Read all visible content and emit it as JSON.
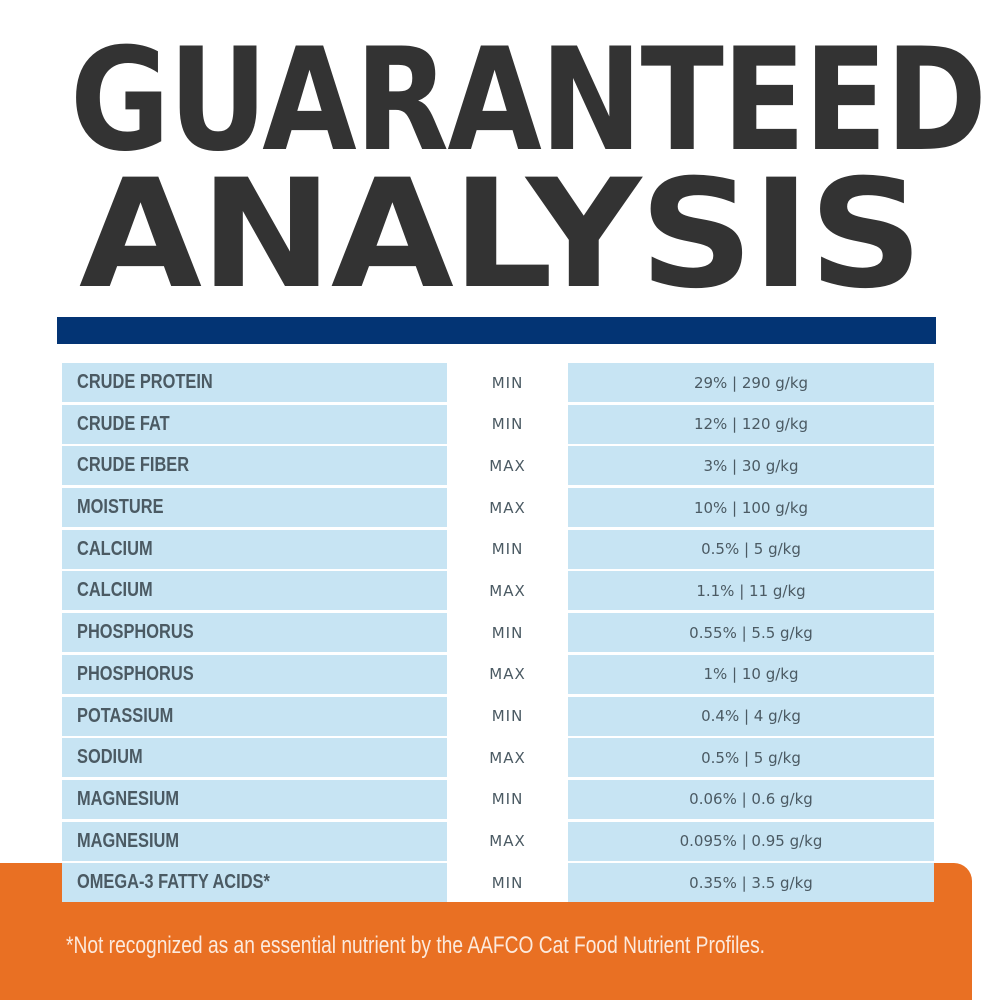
{
  "title": {
    "line1": "GUARANTEED",
    "line2": "ANALYSIS"
  },
  "colors": {
    "title": "#333333",
    "bar": "#033474",
    "row": "#C7E4F3",
    "footer_bg": "#E97023",
    "text": "#4B5A63"
  },
  "rows": [
    {
      "nutrient": "CRUDE PROTEIN",
      "type": "MIN",
      "value": "29% | 290 g/kg"
    },
    {
      "nutrient": "CRUDE FAT",
      "type": "MIN",
      "value": "12% | 120 g/kg"
    },
    {
      "nutrient": "CRUDE FIBER",
      "type": "MAX",
      "value": "3% | 30 g/kg"
    },
    {
      "nutrient": "MOISTURE",
      "type": "MAX",
      "value": "10% | 100 g/kg"
    },
    {
      "nutrient": "CALCIUM",
      "type": "MIN",
      "value": "0.5% | 5 g/kg"
    },
    {
      "nutrient": "CALCIUM",
      "type": "MAX",
      "value": "1.1% | 11 g/kg"
    },
    {
      "nutrient": "PHOSPHORUS",
      "type": "MIN",
      "value": "0.55% | 5.5 g/kg"
    },
    {
      "nutrient": "PHOSPHORUS",
      "type": "MAX",
      "value": "1% | 10 g/kg"
    },
    {
      "nutrient": "POTASSIUM",
      "type": "MIN",
      "value": "0.4% | 4 g/kg"
    },
    {
      "nutrient": "SODIUM",
      "type": "MAX",
      "value": "0.5% | 5 g/kg"
    },
    {
      "nutrient": "MAGNESIUM",
      "type": "MIN",
      "value": "0.06% | 0.6 g/kg"
    },
    {
      "nutrient": "MAGNESIUM",
      "type": "MAX",
      "value": "0.095% | 0.95 g/kg"
    },
    {
      "nutrient": "OMEGA-3 FATTY ACIDS*",
      "type": "MIN",
      "value": "0.35% | 3.5 g/kg"
    }
  ],
  "footnote": "*Not recognized as an essential nutrient by the AAFCO Cat Food Nutrient Profiles."
}
